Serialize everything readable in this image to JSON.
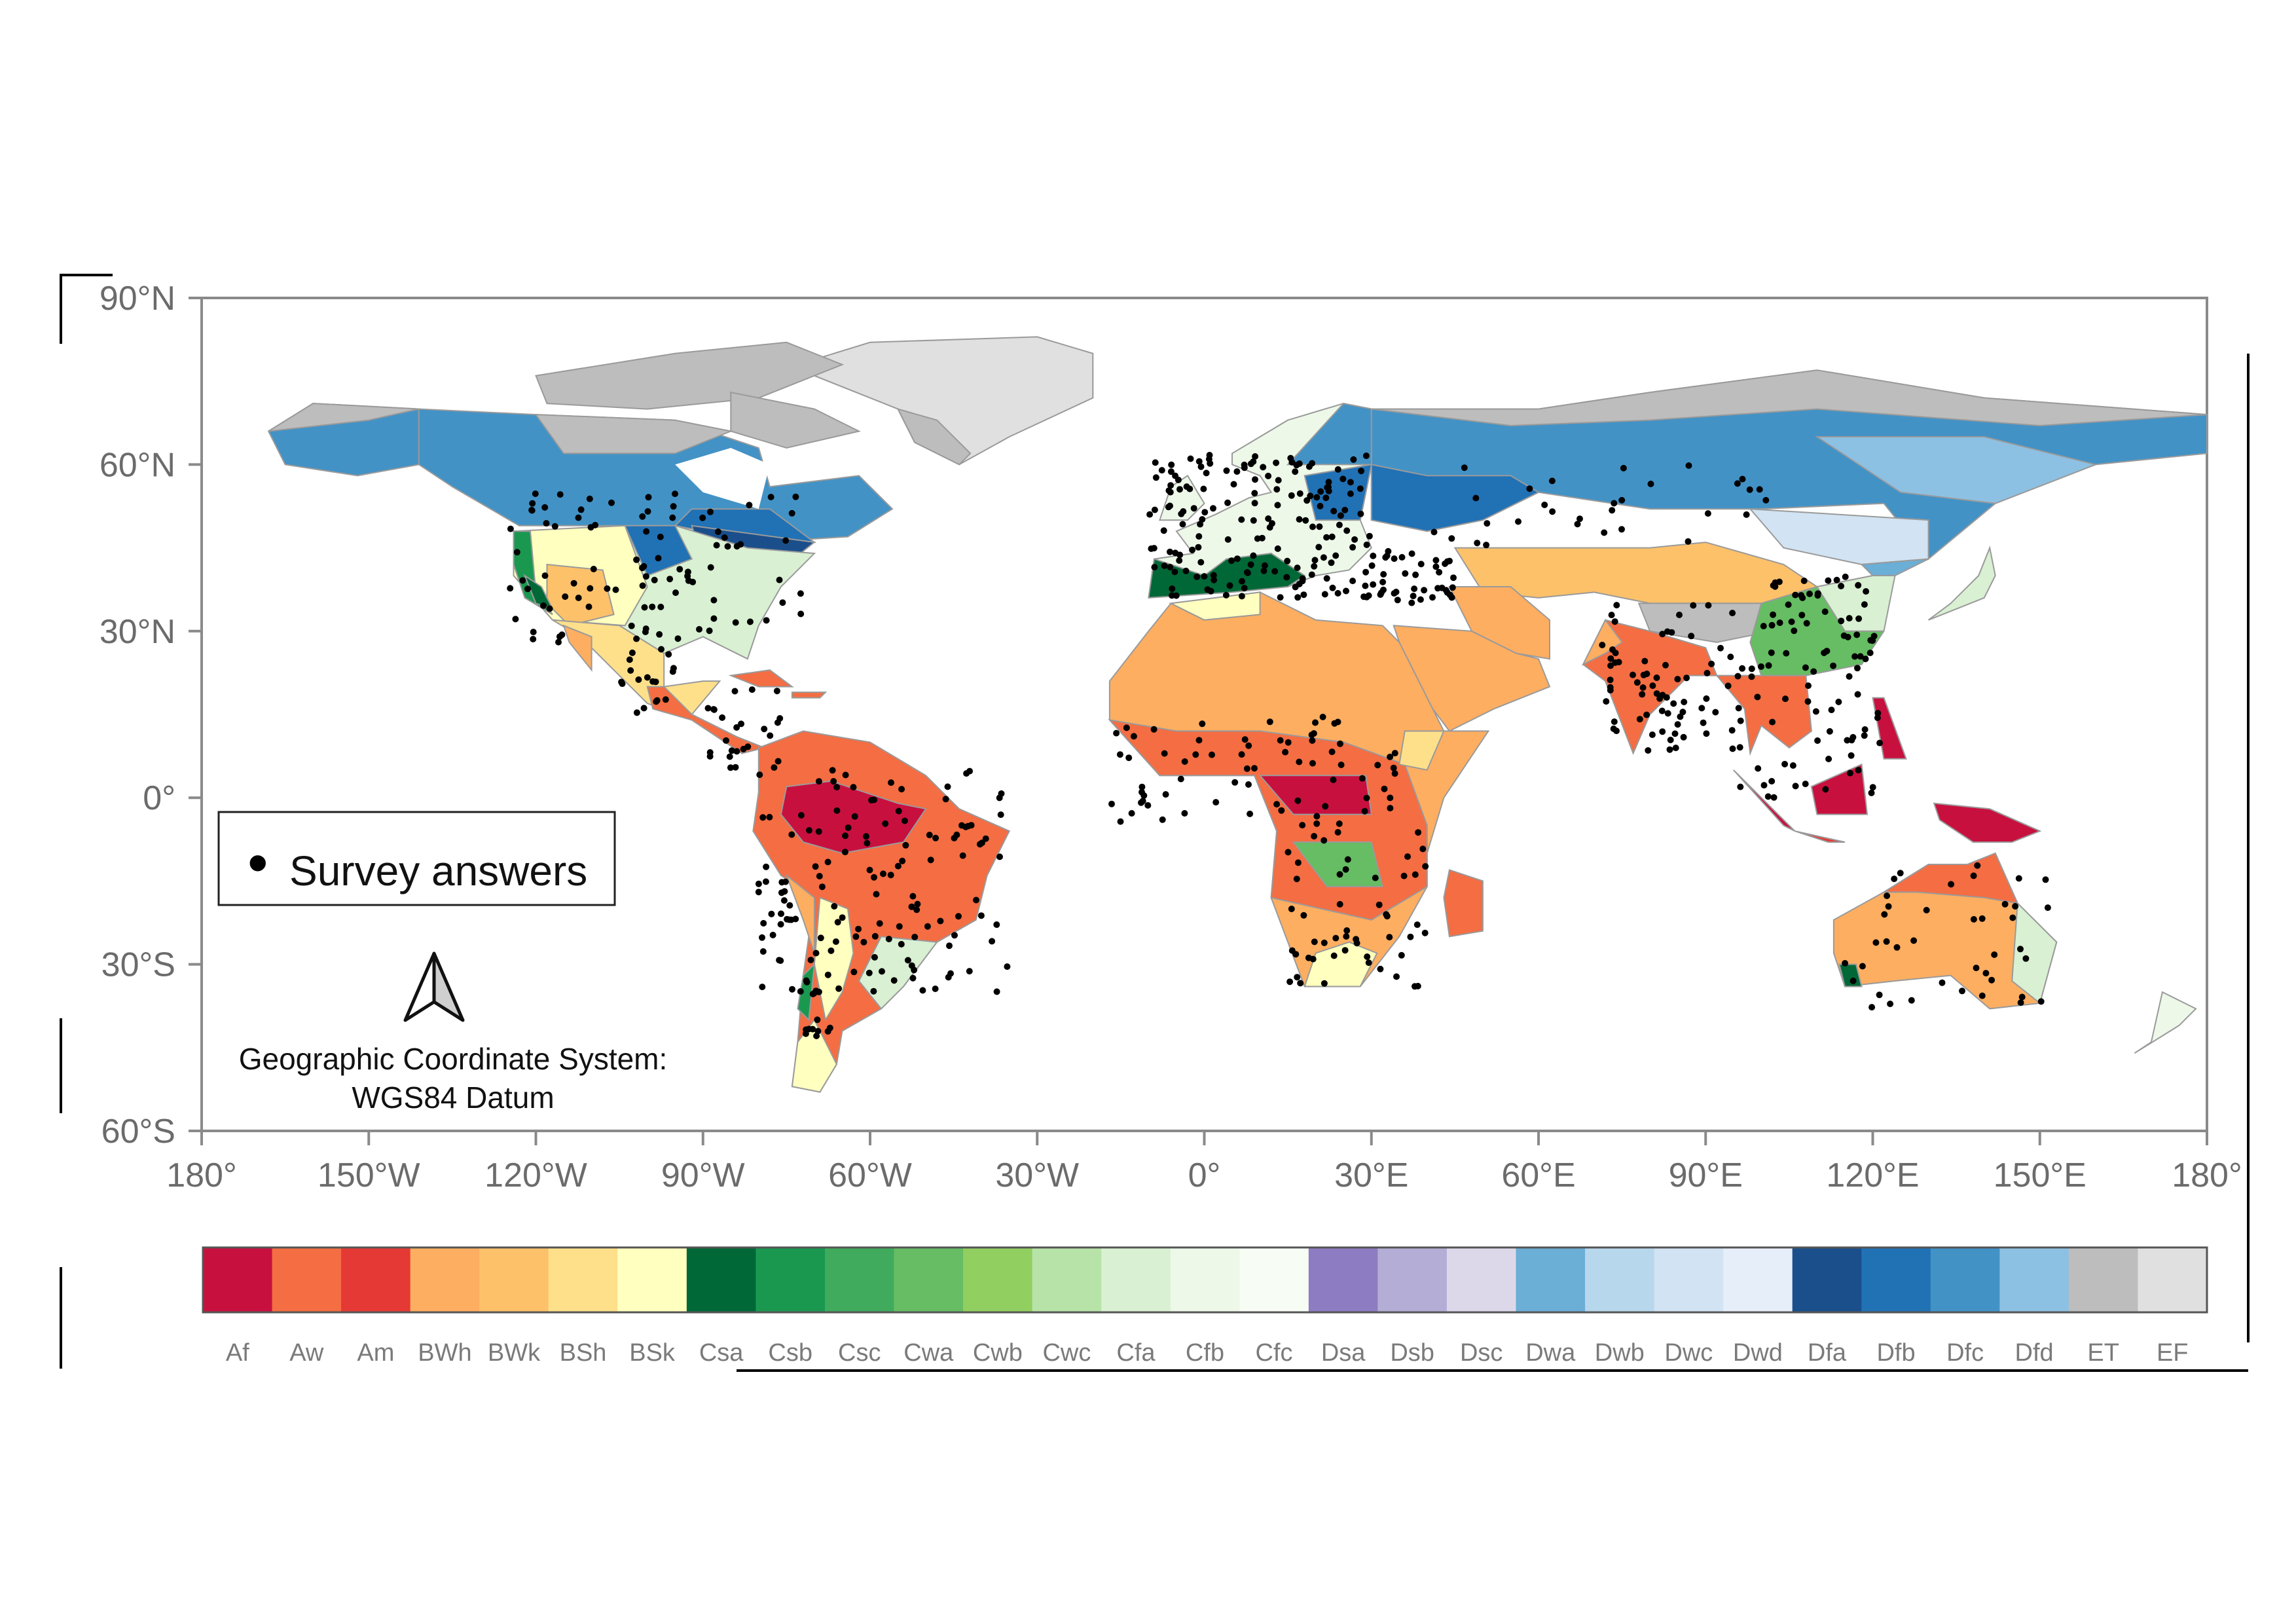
{
  "map": {
    "lat_ticks": [
      {
        "value": 90,
        "label": "90°N"
      },
      {
        "value": 60,
        "label": "60°N"
      },
      {
        "value": 30,
        "label": "30°N"
      },
      {
        "value": 0,
        "label": "0°"
      },
      {
        "value": -30,
        "label": "30°S"
      },
      {
        "value": -60,
        "label": "60°S"
      }
    ],
    "lon_ticks": [
      {
        "value": -180,
        "label": "180°"
      },
      {
        "value": -150,
        "label": "150°W"
      },
      {
        "value": -120,
        "label": "120°W"
      },
      {
        "value": -90,
        "label": "90°W"
      },
      {
        "value": -60,
        "label": "60°W"
      },
      {
        "value": -30,
        "label": "30°W"
      },
      {
        "value": 0,
        "label": "0°"
      },
      {
        "value": 30,
        "label": "30°E"
      },
      {
        "value": 60,
        "label": "60°E"
      },
      {
        "value": 90,
        "label": "90°E"
      },
      {
        "value": 120,
        "label": "120°E"
      },
      {
        "value": 150,
        "label": "150°E"
      },
      {
        "value": 180,
        "label": "180°"
      }
    ],
    "legend": {
      "marker": "•",
      "label": "Survey answers"
    },
    "north_arrow_icon": "north-arrow-icon",
    "crs_line1": "Geographic Coordinate System:",
    "crs_line2": "WGS84 Datum",
    "colors": {
      "ocean": "#ffffff",
      "frame": "#8a8a8a",
      "survey_point": "#000000"
    }
  },
  "colorbar": {
    "classes": [
      {
        "code": "Af",
        "color": "#c8103f"
      },
      {
        "code": "Aw",
        "color": "#f46d43"
      },
      {
        "code": "Am",
        "color": "#e53935"
      },
      {
        "code": "BWh",
        "color": "#fdae61"
      },
      {
        "code": "BWk",
        "color": "#fdc16a"
      },
      {
        "code": "BSh",
        "color": "#fee08b"
      },
      {
        "code": "BSk",
        "color": "#ffffbf"
      },
      {
        "code": "Csa",
        "color": "#006837"
      },
      {
        "code": "Csb",
        "color": "#1a9850"
      },
      {
        "code": "Csc",
        "color": "#41ab5d"
      },
      {
        "code": "Cwa",
        "color": "#66bd63"
      },
      {
        "code": "Cwb",
        "color": "#91cf60"
      },
      {
        "code": "Cwc",
        "color": "#b8e3a8"
      },
      {
        "code": "Cfa",
        "color": "#d9f0d3"
      },
      {
        "code": "Cfb",
        "color": "#edf8e9"
      },
      {
        "code": "Cfc",
        "color": "#f7fcf5"
      },
      {
        "code": "Dsa",
        "color": "#8e7cc3"
      },
      {
        "code": "Dsb",
        "color": "#b4aed6"
      },
      {
        "code": "Dsc",
        "color": "#dcd8ea"
      },
      {
        "code": "Dwa",
        "color": "#6baed6"
      },
      {
        "code": "Dwb",
        "color": "#b7d7ec"
      },
      {
        "code": "Dwc",
        "color": "#d2e3f3"
      },
      {
        "code": "Dwd",
        "color": "#e6eef9"
      },
      {
        "code": "Dfa",
        "color": "#1a4f8b"
      },
      {
        "code": "Dfb",
        "color": "#2171b5"
      },
      {
        "code": "Dfc",
        "color": "#4292c6"
      },
      {
        "code": "Dfd",
        "color": "#8dc1e3"
      },
      {
        "code": "ET",
        "color": "#bdbdbd"
      },
      {
        "code": "EF",
        "color": "#e0e0e0"
      }
    ]
  }
}
